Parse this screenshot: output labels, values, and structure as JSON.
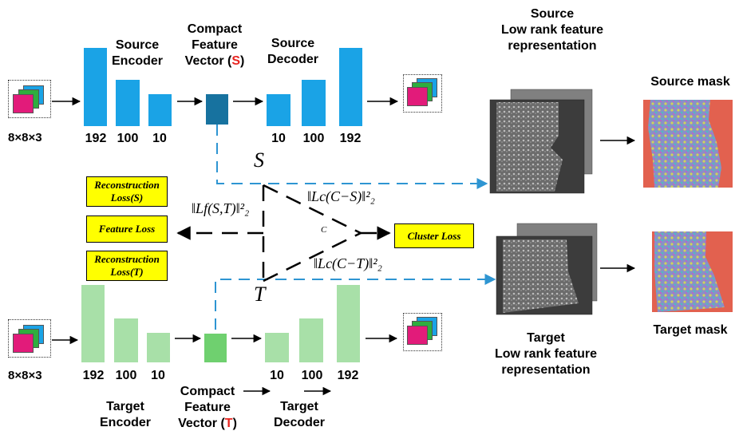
{
  "source": {
    "encoder_label": "Source\nEncoder",
    "decoder_label": "Source\nDecoder",
    "vector_label_prefix": "Compact\nFeature\nVector (",
    "vector_letter": "S",
    "vector_label_suffix": ")",
    "encoder_dims": [
      "192",
      "100",
      "10"
    ],
    "decoder_dims": [
      "10",
      "100",
      "192"
    ],
    "input_dims": "8×8×3",
    "lowrank_label": "Source\nLow rank feature\nrepresentation",
    "mask_label": "Source mask",
    "link_letter": "S"
  },
  "target": {
    "encoder_label": "Target\nEncoder",
    "decoder_label": "Target\nDecoder",
    "vector_label_prefix": "Compact\nFeature\nVector (",
    "vector_letter": "T",
    "vector_label_suffix": ")",
    "encoder_dims": [
      "192",
      "100",
      "10"
    ],
    "decoder_dims": [
      "10",
      "100",
      "192"
    ],
    "input_dims": "8×8×3",
    "lowrank_label": "Target\nLow rank feature\nrepresentation",
    "mask_label": "Target mask",
    "link_letter": "T"
  },
  "losses": {
    "recon_s": "Reconstruction\nLoss(S)",
    "feature": "Feature Loss",
    "recon_t": "Reconstruction\nLoss(T)",
    "cluster": "Cluster Loss",
    "center_letter": "C",
    "lf_formula": "‖Lf(S,T)‖²₂",
    "lcs_formula": "‖Lc(C−S)‖²₂",
    "lct_formula": "‖Lc(C−T)‖²₂"
  },
  "colors": {
    "source_bar": "#1aa3e6",
    "source_vector": "#17729f",
    "target_bar": "#a8e0a8",
    "target_vector": "#6fd06f",
    "link_dash": "#2e95d2",
    "loss_box": "#ffff00",
    "letter_red": "#e8231f"
  }
}
